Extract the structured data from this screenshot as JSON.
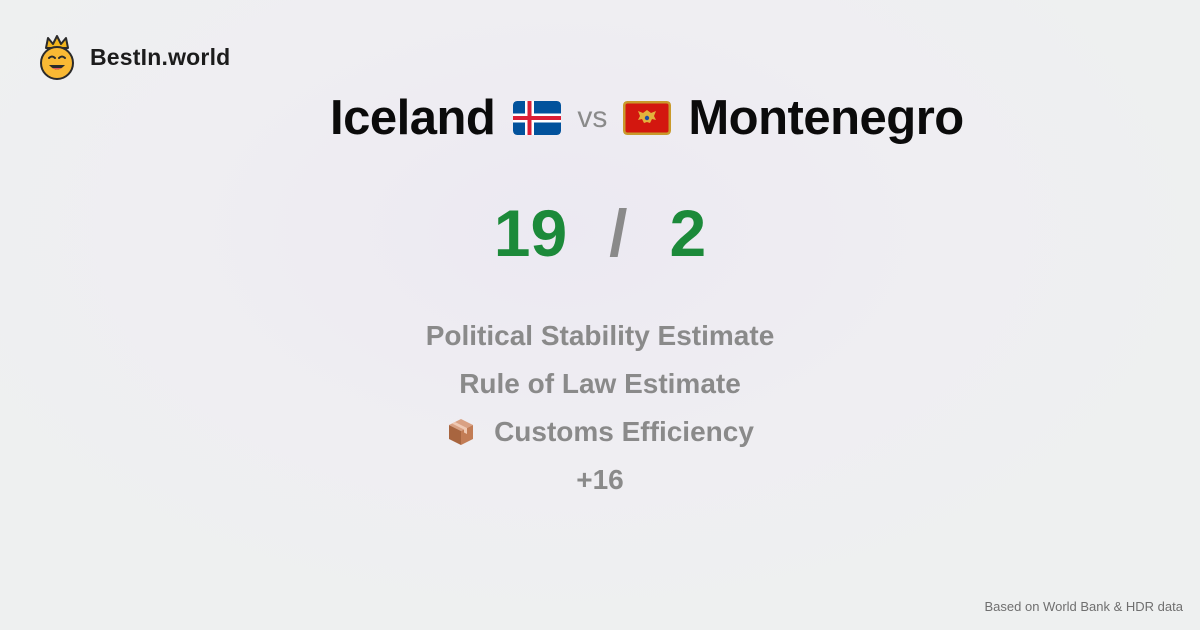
{
  "brand": {
    "name": "BestIn.world",
    "logo_icon": "crowned-smiley-icon"
  },
  "comparison": {
    "left_country": "Iceland",
    "left_flag": "iceland-flag-icon",
    "separator": "vs",
    "right_country": "Montenegro",
    "right_flag": "montenegro-flag-icon"
  },
  "scores": {
    "left": "19",
    "separator": "/",
    "right": "2",
    "color": "#1c8a3a"
  },
  "metrics": [
    {
      "label": "Political Stability Estimate",
      "icon": ""
    },
    {
      "label": "Rule of Law Estimate",
      "icon": ""
    },
    {
      "label": "Customs Efficiency",
      "icon": "package-icon"
    },
    {
      "label": "+16",
      "icon": ""
    }
  ],
  "footer": {
    "source_note": "Based on World Bank & HDR data"
  },
  "colors": {
    "muted_text": "#8a8a8a",
    "title_text": "#0b0b0b",
    "iceland_blue": "#02529c",
    "iceland_red": "#dc1e35",
    "montenegro_red": "#d3170f",
    "montenegro_gold": "#c99a2b"
  }
}
